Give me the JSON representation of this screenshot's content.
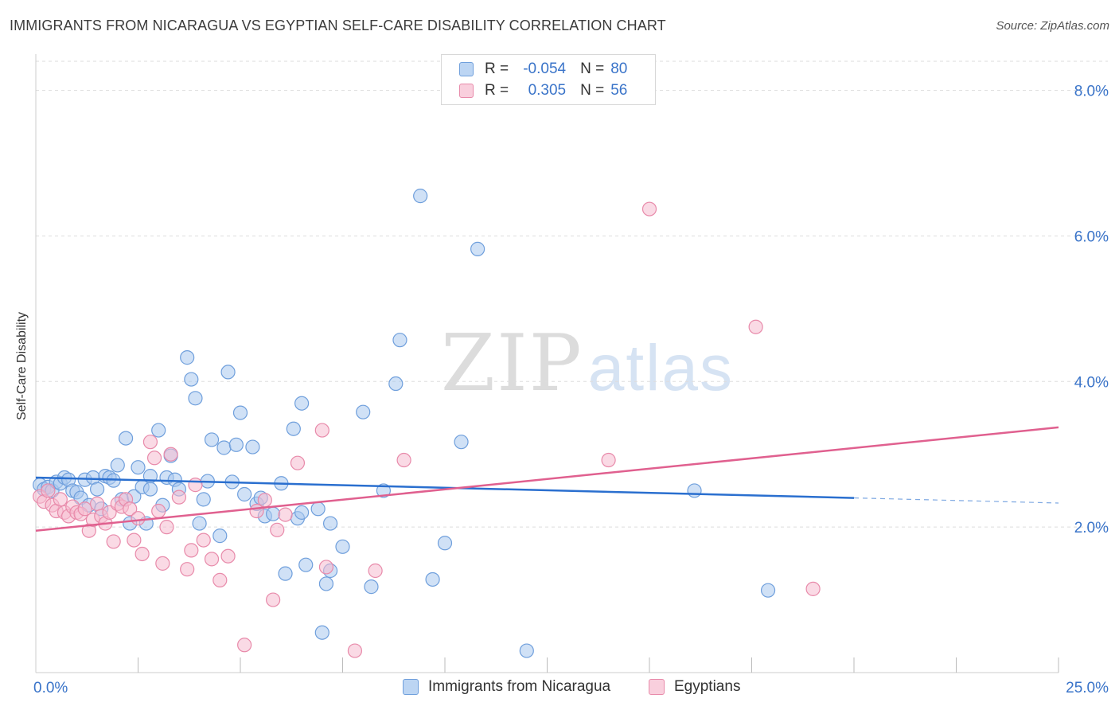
{
  "header": {
    "title": "IMMIGRANTS FROM NICARAGUA VS EGYPTIAN SELF-CARE DISABILITY CORRELATION CHART",
    "source": "Source: ZipAtlas.com"
  },
  "watermark": {
    "zip": "ZIP",
    "atlas": "atlas"
  },
  "legend": {
    "rows": [
      {
        "r_label": "R =",
        "r_value": "-0.054",
        "n_label": "N =",
        "n_value": "80"
      },
      {
        "r_label": "R =",
        "r_value": "0.305",
        "n_label": "N =",
        "n_value": "56"
      }
    ]
  },
  "colors": {
    "blue_fill": "#a9c8ee",
    "blue_stroke": "#6f9fdc",
    "blue_line": "#2a6fcf",
    "pink_fill": "#f6bcd0",
    "pink_stroke": "#e88aaa",
    "pink_line": "#e0608f",
    "tick_label": "#3a74c9",
    "grid": "#dddddd"
  },
  "chart_data": {
    "type": "scatter",
    "title": "IMMIGRANTS FROM NICARAGUA VS EGYPTIAN SELF-CARE DISABILITY CORRELATION CHART",
    "xlabel": "",
    "ylabel": "Self-Care Disability",
    "xlim": [
      0,
      25
    ],
    "ylim": [
      0,
      8.4
    ],
    "x_tick_labels": [
      "0.0%",
      "25.0%"
    ],
    "y_ticks": [
      2,
      4,
      6,
      8
    ],
    "y_tick_labels": [
      "2.0%",
      "4.0%",
      "6.0%",
      "8.0%"
    ],
    "grid": true,
    "legend_position": "bottom",
    "series": [
      {
        "name": "Immigrants from Nicaragua",
        "color": "#6f9fdc",
        "points": [
          [
            0.1,
            2.58
          ],
          [
            0.2,
            2.52
          ],
          [
            0.3,
            2.55
          ],
          [
            0.4,
            2.5
          ],
          [
            0.5,
            2.62
          ],
          [
            0.6,
            2.6
          ],
          [
            0.7,
            2.68
          ],
          [
            0.8,
            2.65
          ],
          [
            0.9,
            2.5
          ],
          [
            1.0,
            2.48
          ],
          [
            1.1,
            2.4
          ],
          [
            1.2,
            2.65
          ],
          [
            1.3,
            2.3
          ],
          [
            1.4,
            2.68
          ],
          [
            1.5,
            2.52
          ],
          [
            1.6,
            2.25
          ],
          [
            1.7,
            2.7
          ],
          [
            1.8,
            2.68
          ],
          [
            1.9,
            2.64
          ],
          [
            2.0,
            2.85
          ],
          [
            2.1,
            2.38
          ],
          [
            2.2,
            3.22
          ],
          [
            2.3,
            2.05
          ],
          [
            2.4,
            2.42
          ],
          [
            2.5,
            2.82
          ],
          [
            2.6,
            2.55
          ],
          [
            2.7,
            2.05
          ],
          [
            2.8,
            2.7
          ],
          [
            2.8,
            2.52
          ],
          [
            3.0,
            3.33
          ],
          [
            3.1,
            2.3
          ],
          [
            3.2,
            2.68
          ],
          [
            3.3,
            2.98
          ],
          [
            3.4,
            2.65
          ],
          [
            3.5,
            2.52
          ],
          [
            3.7,
            4.33
          ],
          [
            3.8,
            4.03
          ],
          [
            3.9,
            3.77
          ],
          [
            4.0,
            2.05
          ],
          [
            4.1,
            2.38
          ],
          [
            4.2,
            2.63
          ],
          [
            4.3,
            3.2
          ],
          [
            4.5,
            1.88
          ],
          [
            4.6,
            3.09
          ],
          [
            4.7,
            4.13
          ],
          [
            4.8,
            2.62
          ],
          [
            4.9,
            3.13
          ],
          [
            5.0,
            3.57
          ],
          [
            5.1,
            2.45
          ],
          [
            5.3,
            3.1
          ],
          [
            5.4,
            2.32
          ],
          [
            5.5,
            2.4
          ],
          [
            5.6,
            2.15
          ],
          [
            5.8,
            2.18
          ],
          [
            6.0,
            2.6
          ],
          [
            6.1,
            1.36
          ],
          [
            6.3,
            3.35
          ],
          [
            6.4,
            2.12
          ],
          [
            6.5,
            3.7
          ],
          [
            6.5,
            2.2
          ],
          [
            6.6,
            1.48
          ],
          [
            6.9,
            2.25
          ],
          [
            7.0,
            0.55
          ],
          [
            7.1,
            1.22
          ],
          [
            7.2,
            1.4
          ],
          [
            7.2,
            2.05
          ],
          [
            7.5,
            1.73
          ],
          [
            8.0,
            3.58
          ],
          [
            8.2,
            1.18
          ],
          [
            8.5,
            2.5
          ],
          [
            8.8,
            3.97
          ],
          [
            8.9,
            4.57
          ],
          [
            9.4,
            6.55
          ],
          [
            9.7,
            1.28
          ],
          [
            10.0,
            1.78
          ],
          [
            10.4,
            3.17
          ],
          [
            10.8,
            5.82
          ],
          [
            12.0,
            0.3
          ],
          [
            16.1,
            2.5
          ],
          [
            17.9,
            1.13
          ]
        ]
      },
      {
        "name": "Egyptians",
        "color": "#e88aaa",
        "points": [
          [
            0.1,
            2.42
          ],
          [
            0.2,
            2.35
          ],
          [
            0.3,
            2.5
          ],
          [
            0.4,
            2.3
          ],
          [
            0.5,
            2.22
          ],
          [
            0.6,
            2.38
          ],
          [
            0.7,
            2.2
          ],
          [
            0.8,
            2.15
          ],
          [
            0.9,
            2.28
          ],
          [
            1.0,
            2.2
          ],
          [
            1.1,
            2.18
          ],
          [
            1.2,
            2.25
          ],
          [
            1.3,
            1.95
          ],
          [
            1.4,
            2.1
          ],
          [
            1.5,
            2.32
          ],
          [
            1.6,
            2.15
          ],
          [
            1.7,
            2.05
          ],
          [
            1.8,
            2.2
          ],
          [
            1.9,
            1.8
          ],
          [
            2.0,
            2.32
          ],
          [
            2.1,
            2.28
          ],
          [
            2.2,
            2.38
          ],
          [
            2.3,
            2.25
          ],
          [
            2.4,
            1.82
          ],
          [
            2.5,
            2.12
          ],
          [
            2.6,
            1.63
          ],
          [
            2.8,
            3.17
          ],
          [
            2.9,
            2.95
          ],
          [
            3.0,
            2.22
          ],
          [
            3.1,
            1.5
          ],
          [
            3.2,
            2.0
          ],
          [
            3.3,
            3.0
          ],
          [
            3.5,
            2.41
          ],
          [
            3.7,
            1.42
          ],
          [
            3.8,
            1.68
          ],
          [
            3.9,
            2.58
          ],
          [
            4.1,
            1.82
          ],
          [
            4.3,
            1.56
          ],
          [
            4.5,
            1.27
          ],
          [
            4.7,
            1.6
          ],
          [
            5.1,
            0.38
          ],
          [
            5.4,
            2.22
          ],
          [
            5.6,
            2.37
          ],
          [
            5.8,
            1.0
          ],
          [
            5.9,
            1.96
          ],
          [
            6.1,
            2.17
          ],
          [
            6.4,
            2.88
          ],
          [
            7.0,
            3.33
          ],
          [
            7.1,
            1.45
          ],
          [
            7.8,
            0.3
          ],
          [
            8.3,
            1.4
          ],
          [
            9.0,
            2.92
          ],
          [
            14.0,
            2.92
          ],
          [
            15.0,
            6.37
          ],
          [
            17.6,
            4.75
          ],
          [
            19.0,
            1.15
          ]
        ]
      }
    ],
    "trend_lines": [
      {
        "series": "Immigrants from Nicaragua",
        "x": [
          0,
          20
        ],
        "y": [
          2.68,
          2.4
        ],
        "dashed_extension_to": 25,
        "dashed_end_y": 2.33
      },
      {
        "series": "Egyptians",
        "x": [
          0,
          25
        ],
        "y": [
          1.95,
          3.37
        ]
      }
    ]
  },
  "bottom_legend": {
    "items": [
      {
        "label": "Immigrants from Nicaragua"
      },
      {
        "label": "Egyptians"
      }
    ]
  }
}
